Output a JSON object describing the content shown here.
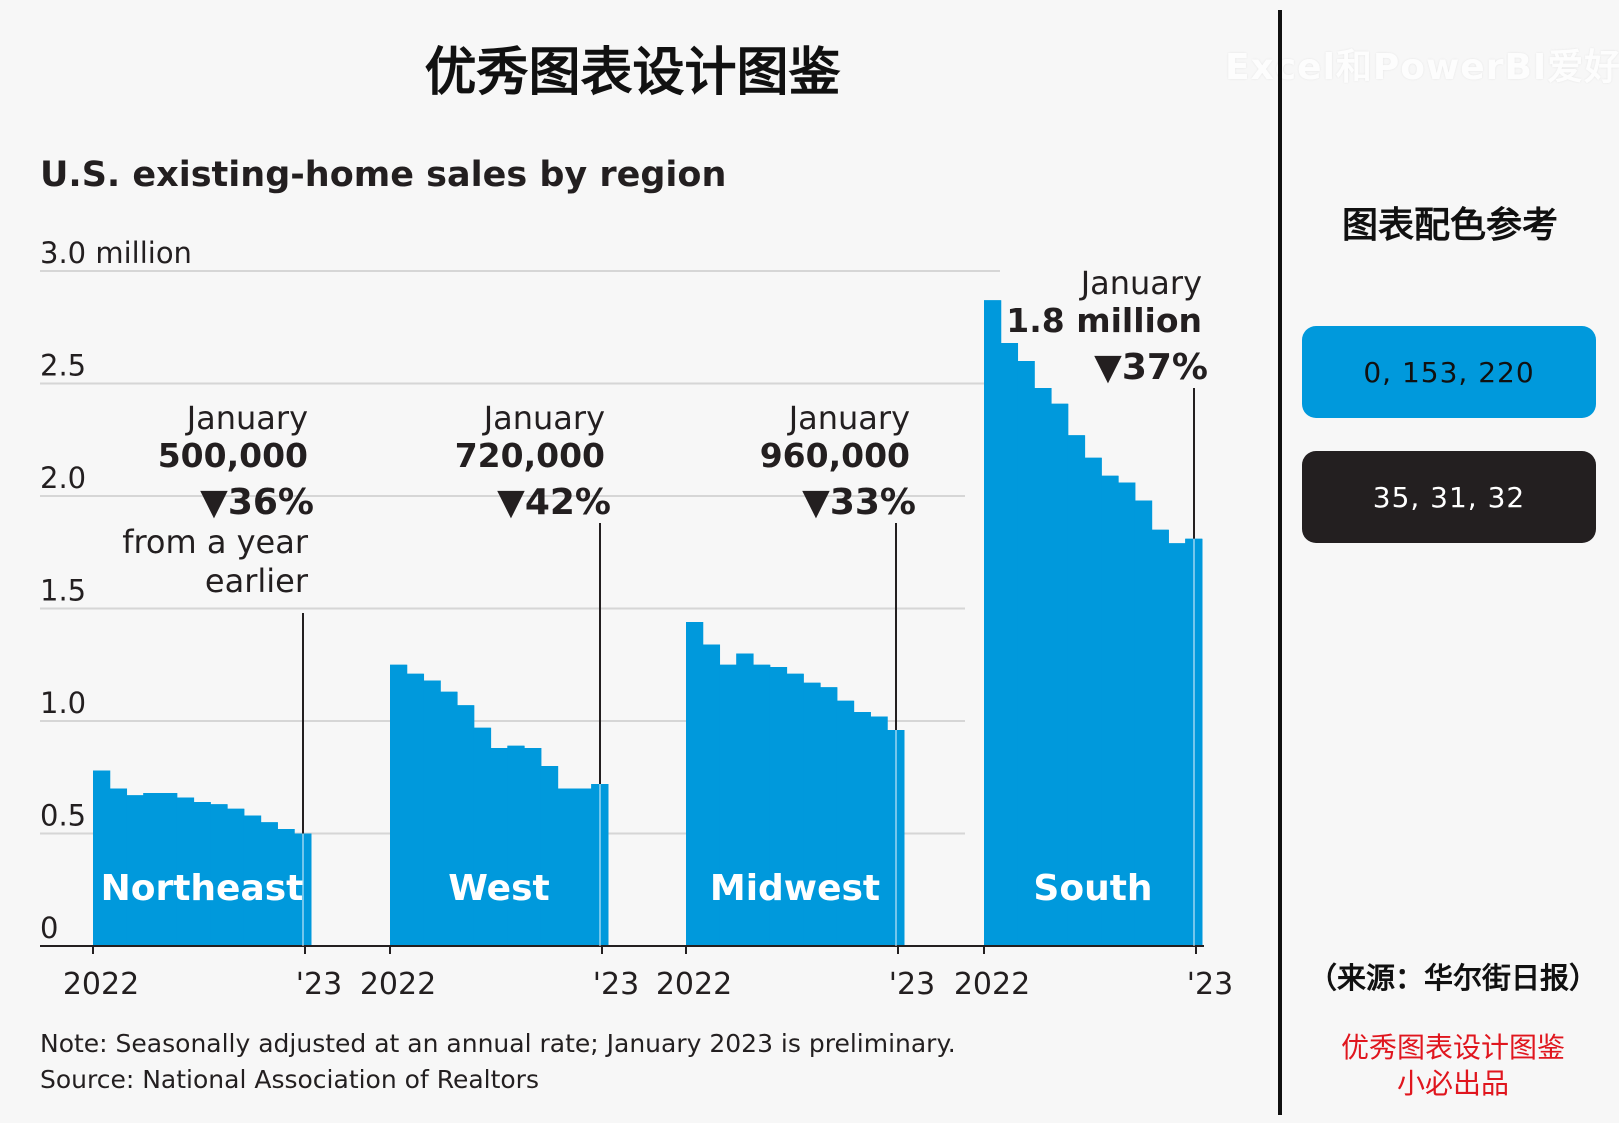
{
  "page_title": "优秀图表设计图鉴",
  "watermark": "Excel和PowerBI爱好者",
  "chart_data": {
    "type": "bar",
    "title": "U.S. existing-home sales by region",
    "unit_label": "3.0 million",
    "y_ticks": [
      "3.0 million",
      "2.5",
      "2.0",
      "1.5",
      "1.0",
      "0.5",
      "0"
    ],
    "ylim": [
      0,
      3.0
    ],
    "grid": true,
    "series": [
      {
        "name": "Northeast",
        "x_start": "2022",
        "x_end": "'23",
        "values": [
          0.78,
          0.7,
          0.67,
          0.68,
          0.68,
          0.66,
          0.64,
          0.63,
          0.61,
          0.58,
          0.55,
          0.52,
          0.5
        ],
        "annotation": {
          "month": "January",
          "value": "500,000",
          "change": "▼36%",
          "extra_1": "from a year",
          "extra_2": "earlier"
        }
      },
      {
        "name": "West",
        "x_start": "2022",
        "x_end": "'23",
        "values": [
          1.25,
          1.21,
          1.18,
          1.13,
          1.07,
          0.97,
          0.88,
          0.89,
          0.88,
          0.8,
          0.7,
          0.7,
          0.72
        ],
        "annotation": {
          "month": "January",
          "value": "720,000",
          "change": "▼42%"
        }
      },
      {
        "name": "Midwest",
        "x_start": "2022",
        "x_end": "'23",
        "values": [
          1.44,
          1.34,
          1.25,
          1.3,
          1.25,
          1.24,
          1.21,
          1.17,
          1.15,
          1.09,
          1.04,
          1.02,
          0.96
        ],
        "annotation": {
          "month": "January",
          "value": "960,000",
          "change": "▼33%"
        }
      },
      {
        "name": "South",
        "x_start": "2022",
        "x_end": "'23",
        "values": [
          2.87,
          2.68,
          2.6,
          2.48,
          2.41,
          2.27,
          2.17,
          2.09,
          2.06,
          1.98,
          1.85,
          1.79,
          1.81
        ],
        "annotation": {
          "month": "January",
          "value": "1.8 million",
          "change": "▼37%"
        }
      }
    ],
    "note": "Note: Seasonally adjusted at an annual rate; January 2023 is preliminary.",
    "source": "Source: National Association of Realtors",
    "colors": {
      "bar": "#0099dc",
      "text": "#231f20",
      "grid": "#d6d6d6"
    }
  },
  "side": {
    "title": "图表配色参考",
    "swatches": [
      {
        "label": "0, 153, 220",
        "color": "#0099dc",
        "text_color": "#111111"
      },
      {
        "label": "35, 31, 32",
        "color": "#231f20",
        "text_color": "#ffffff"
      }
    ],
    "source_note": "（来源：华尔街日报）",
    "credit_line1": "优秀图表设计图鉴",
    "credit_line2": "小必出品"
  }
}
